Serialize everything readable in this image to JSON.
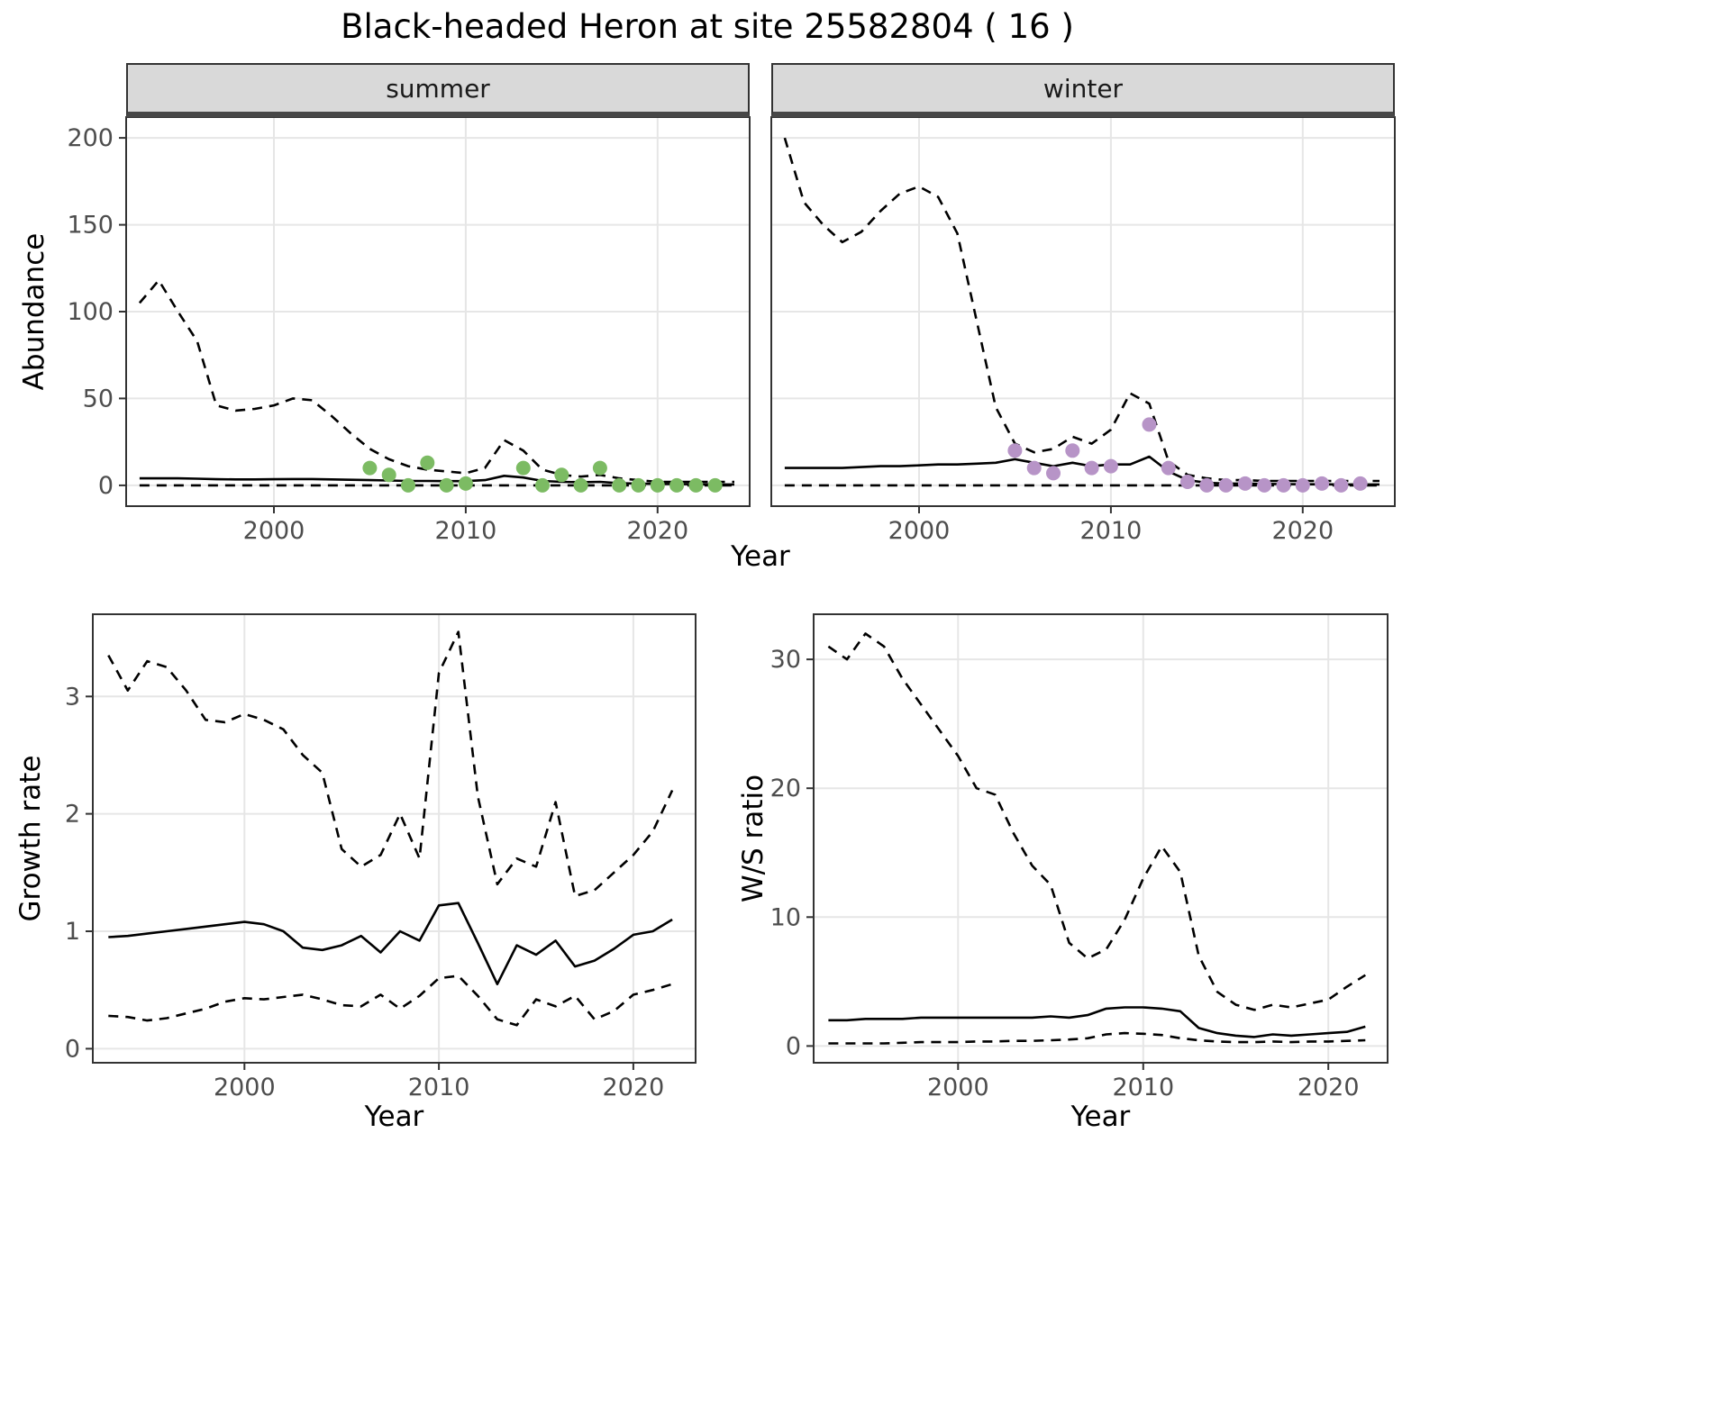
{
  "title": "Black-headed Heron at site 25582804 ( 16 )",
  "colors": {
    "summer_point": "#7CBB63",
    "winter_point": "#B794C7",
    "line": "#000000",
    "grid": "#E6E6E6",
    "panel_border": "#333333",
    "strip_background": "#D9D9D9",
    "tick_text": "#4D4D4D"
  },
  "chart_data": [
    {
      "id": "abundance-by-season",
      "type": "line",
      "xlabel": "Year",
      "ylabel": "Abundance",
      "xlim": [
        1992.3,
        2024.8
      ],
      "ylim": [
        -12,
        212
      ],
      "xticks": [
        2000,
        2010,
        2020
      ],
      "yticks": [
        0,
        50,
        100,
        150,
        200
      ],
      "grid": true,
      "legend": "none",
      "facets": [
        {
          "label": "summer",
          "x": [
            1993,
            1994,
            1995,
            1996,
            1997,
            1998,
            1999,
            2000,
            2001,
            2002,
            2003,
            2004,
            2005,
            2006,
            2007,
            2008,
            2009,
            2010,
            2011,
            2012,
            2013,
            2014,
            2015,
            2016,
            2017,
            2018,
            2019,
            2020,
            2021,
            2022,
            2023,
            2024
          ],
          "series": [
            {
              "name": "upper-ci",
              "style": "dashed",
              "values": [
                105,
                118,
                100,
                83,
                46,
                43,
                44,
                46,
                50,
                49,
                40,
                30,
                21,
                15,
                11,
                9,
                8,
                7,
                10,
                26,
                20,
                9,
                6,
                5,
                6,
                4,
                3,
                2,
                2,
                2,
                2,
                2
              ]
            },
            {
              "name": "median",
              "style": "solid",
              "values": [
                4,
                4,
                4,
                3.8,
                3.5,
                3.4,
                3.4,
                3.5,
                3.6,
                3.6,
                3.4,
                3.2,
                3,
                2.8,
                2.5,
                2.5,
                2.4,
                2.4,
                3,
                5.5,
                4.5,
                2.5,
                2,
                1.8,
                2,
                1.2,
                1,
                0.8,
                0.7,
                0.6,
                0.5,
                0.5
              ]
            },
            {
              "name": "lower-ci",
              "style": "dashed",
              "values": [
                0,
                0,
                0,
                0,
                0,
                0,
                0,
                0,
                0,
                0,
                0,
                0,
                0,
                0,
                0,
                0,
                0,
                0,
                0,
                0,
                0,
                0,
                0,
                0,
                0,
                0,
                0,
                0,
                0,
                0,
                0,
                0
              ]
            }
          ],
          "points": {
            "name": "observed-counts",
            "color_key": "summer_point",
            "x": [
              2005,
              2006,
              2007,
              2008,
              2009,
              2010,
              2013,
              2014,
              2015,
              2016,
              2017,
              2018,
              2019,
              2020,
              2021,
              2022,
              2023
            ],
            "y": [
              10,
              6,
              0,
              13,
              0,
              1,
              10,
              0,
              6,
              0,
              10,
              0,
              0,
              0,
              0,
              0,
              0
            ]
          }
        },
        {
          "label": "winter",
          "x": [
            1993,
            1994,
            1995,
            1996,
            1997,
            1998,
            1999,
            2000,
            2001,
            2002,
            2003,
            2004,
            2005,
            2006,
            2007,
            2008,
            2009,
            2010,
            2011,
            2012,
            2013,
            2014,
            2015,
            2016,
            2017,
            2018,
            2019,
            2020,
            2021,
            2022,
            2023,
            2024
          ],
          "series": [
            {
              "name": "upper-ci",
              "style": "dashed",
              "values": [
                200,
                163,
                150,
                140,
                146,
                158,
                168,
                172,
                166,
                145,
                95,
                45,
                24,
                19,
                21,
                28,
                24,
                32,
                53,
                47,
                14,
                6,
                4,
                3,
                3,
                2.5,
                2.5,
                2.5,
                2.5,
                2.5,
                2.5,
                2.5
              ]
            },
            {
              "name": "median",
              "style": "solid",
              "values": [
                10,
                10,
                10,
                10,
                10.5,
                11,
                11,
                11.5,
                12,
                12,
                12.5,
                13,
                15,
                13,
                11,
                13,
                11,
                12,
                12,
                16.5,
                8,
                3,
                1.5,
                1,
                1,
                0.8,
                0.7,
                0.6,
                0.6,
                0.5,
                0.5,
                0.5
              ]
            },
            {
              "name": "lower-ci",
              "style": "dashed",
              "values": [
                0,
                0,
                0,
                0,
                0,
                0,
                0,
                0,
                0,
                0,
                0,
                0,
                0,
                0,
                0,
                0,
                0,
                0,
                0,
                0,
                0,
                0,
                0,
                0,
                0,
                0,
                0,
                0,
                0,
                0,
                0,
                0
              ]
            }
          ],
          "points": {
            "name": "observed-counts",
            "color_key": "winter_point",
            "x": [
              2005,
              2006,
              2007,
              2008,
              2009,
              2010,
              2012,
              2013,
              2014,
              2015,
              2016,
              2017,
              2018,
              2019,
              2020,
              2021,
              2022,
              2023
            ],
            "y": [
              20,
              10,
              7,
              20,
              10,
              11,
              35,
              10,
              2,
              0,
              0,
              1,
              0,
              0,
              0,
              1,
              0,
              1
            ]
          }
        }
      ]
    },
    {
      "id": "growth-rate",
      "type": "line",
      "xlabel": "Year",
      "ylabel": "Growth rate",
      "xlim": [
        1992.2,
        2023.2
      ],
      "ylim": [
        -0.12,
        3.7
      ],
      "xticks": [
        2000,
        2010,
        2020
      ],
      "yticks": [
        0,
        1,
        2,
        3
      ],
      "grid": true,
      "legend": "none",
      "x": [
        1993,
        1994,
        1995,
        1996,
        1997,
        1998,
        1999,
        2000,
        2001,
        2002,
        2003,
        2004,
        2005,
        2006,
        2007,
        2008,
        2009,
        2010,
        2011,
        2012,
        2013,
        2014,
        2015,
        2016,
        2017,
        2018,
        2019,
        2020,
        2021,
        2022
      ],
      "series": [
        {
          "name": "upper-ci",
          "style": "dashed",
          "values": [
            3.35,
            3.05,
            3.3,
            3.25,
            3.05,
            2.8,
            2.78,
            2.85,
            2.8,
            2.72,
            2.5,
            2.35,
            1.7,
            1.55,
            1.65,
            2.0,
            1.62,
            3.2,
            3.55,
            2.15,
            1.4,
            1.62,
            1.55,
            2.1,
            1.3,
            1.35,
            1.5,
            1.65,
            1.85,
            2.2
          ]
        },
        {
          "name": "median",
          "style": "solid",
          "values": [
            0.95,
            0.96,
            0.98,
            1.0,
            1.02,
            1.04,
            1.06,
            1.08,
            1.06,
            1.0,
            0.86,
            0.84,
            0.88,
            0.96,
            0.82,
            1.0,
            0.92,
            1.22,
            1.24,
            0.9,
            0.55,
            0.88,
            0.8,
            0.92,
            0.7,
            0.75,
            0.85,
            0.97,
            1.0,
            1.1
          ]
        },
        {
          "name": "lower-ci",
          "style": "dashed",
          "values": [
            0.28,
            0.27,
            0.24,
            0.26,
            0.3,
            0.34,
            0.4,
            0.43,
            0.42,
            0.44,
            0.46,
            0.42,
            0.37,
            0.36,
            0.46,
            0.34,
            0.45,
            0.6,
            0.62,
            0.45,
            0.25,
            0.2,
            0.42,
            0.36,
            0.45,
            0.25,
            0.32,
            0.46,
            0.5,
            0.55
          ]
        }
      ]
    },
    {
      "id": "winter-summer-ratio",
      "type": "line",
      "xlabel": "Year",
      "ylabel": "W/S ratio",
      "xlim": [
        1992.2,
        2023.2
      ],
      "ylim": [
        -1.3,
        33.5
      ],
      "xticks": [
        2000,
        2010,
        2020
      ],
      "yticks": [
        0,
        10,
        20,
        30
      ],
      "grid": true,
      "legend": "none",
      "x": [
        1993,
        1994,
        1995,
        1996,
        1997,
        1998,
        1999,
        2000,
        2001,
        2002,
        2003,
        2004,
        2005,
        2006,
        2007,
        2008,
        2009,
        2010,
        2011,
        2012,
        2013,
        2014,
        2015,
        2016,
        2017,
        2018,
        2019,
        2020,
        2021,
        2022
      ],
      "series": [
        {
          "name": "upper-ci",
          "style": "dashed",
          "values": [
            31,
            30,
            32,
            31,
            28.5,
            26.5,
            24.5,
            22.5,
            20,
            19.5,
            16.5,
            14,
            12.5,
            8,
            6.8,
            7.5,
            9.8,
            13,
            15.5,
            13.5,
            7,
            4.2,
            3.2,
            2.8,
            3.2,
            3.0,
            3.3,
            3.6,
            4.6,
            5.5
          ]
        },
        {
          "name": "median",
          "style": "solid",
          "values": [
            2.0,
            2.0,
            2.1,
            2.1,
            2.1,
            2.2,
            2.2,
            2.2,
            2.2,
            2.2,
            2.2,
            2.2,
            2.3,
            2.2,
            2.4,
            2.9,
            3.0,
            3.0,
            2.9,
            2.7,
            1.4,
            1.0,
            0.8,
            0.7,
            0.9,
            0.8,
            0.9,
            1.0,
            1.1,
            1.5
          ]
        },
        {
          "name": "lower-ci",
          "style": "dashed",
          "values": [
            0.2,
            0.2,
            0.2,
            0.2,
            0.25,
            0.3,
            0.3,
            0.3,
            0.35,
            0.35,
            0.4,
            0.4,
            0.45,
            0.5,
            0.6,
            0.9,
            1.0,
            0.95,
            0.85,
            0.6,
            0.45,
            0.35,
            0.3,
            0.3,
            0.35,
            0.3,
            0.35,
            0.35,
            0.4,
            0.45
          ]
        }
      ]
    }
  ]
}
